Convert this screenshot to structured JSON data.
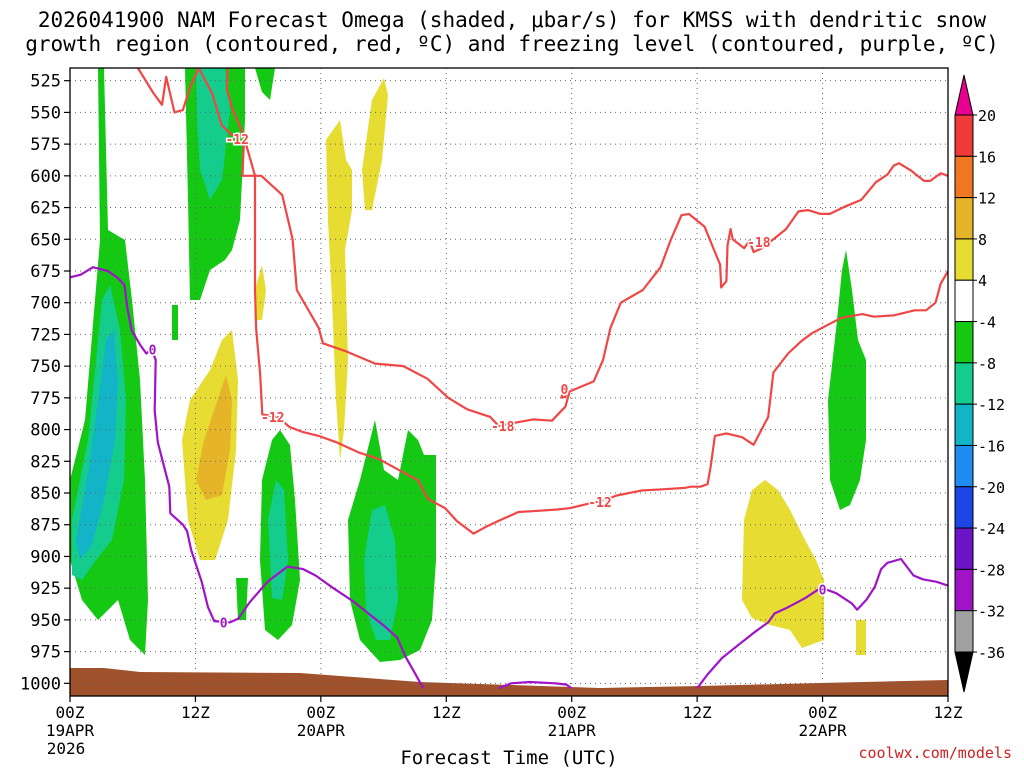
{
  "chart_data": {
    "type": "heatmap",
    "title_line1": "2026041900 NAM Forecast Omega (shaded, μbar/s) for KMSS with dendritic snow",
    "title_line2": "growth region (contoured, red, ºC) and freezing level (contoured, purple, ºC)",
    "xlabel": "Forecast Time (UTC)",
    "ylabel": "",
    "credit": "coolwx.com/models",
    "x_range_hours": [
      0,
      84
    ],
    "y_range_hpa": [
      515,
      1010
    ],
    "y_ticks": [
      "525",
      "550",
      "575",
      "600",
      "625",
      "650",
      "675",
      "700",
      "725",
      "750",
      "775",
      "800",
      "825",
      "850",
      "875",
      "900",
      "925",
      "950",
      "975",
      "1000"
    ],
    "x_ticks": [
      {
        "hour": 0,
        "time": "00Z",
        "date": "19APR",
        "year": "2026"
      },
      {
        "hour": 12,
        "time": "12Z",
        "date": "",
        "year": ""
      },
      {
        "hour": 24,
        "time": "00Z",
        "date": "20APR",
        "year": ""
      },
      {
        "hour": 36,
        "time": "12Z",
        "date": "",
        "year": ""
      },
      {
        "hour": 48,
        "time": "00Z",
        "date": "21APR",
        "year": ""
      },
      {
        "hour": 60,
        "time": "12Z",
        "date": "",
        "year": ""
      },
      {
        "hour": 72,
        "time": "00Z",
        "date": "22APR",
        "year": ""
      },
      {
        "hour": 84,
        "time": "12Z",
        "date": "",
        "year": ""
      }
    ],
    "grid": true,
    "colorbar": {
      "levels": [
        "20",
        "16",
        "12",
        "8",
        "4",
        "-4",
        "-8",
        "-12",
        "-16",
        "-20",
        "-24",
        "-28",
        "-32",
        "-36"
      ],
      "colors": [
        "#e80090",
        "#f03a3a",
        "#f07820",
        "#e6b428",
        "#e6dc32",
        "#ffffff",
        "#14c814",
        "#14cd8c",
        "#14b4c8",
        "#1e8cf0",
        "#1e46e6",
        "#6e14c8",
        "#a014c8",
        "#a0a0a0",
        "#000000"
      ]
    },
    "contour_labels": [
      {
        "text": "-12",
        "h": 16.0,
        "p": 571,
        "series": "dgz"
      },
      {
        "text": "-12",
        "h": 19.4,
        "p": 790,
        "series": "dgz"
      },
      {
        "text": "-18",
        "h": 41.4,
        "p": 797,
        "series": "dgz"
      },
      {
        "text": "-12",
        "h": 50.7,
        "p": 857,
        "series": "dgz"
      },
      {
        "text": "-18",
        "h": 65.9,
        "p": 652,
        "series": "dgz"
      },
      {
        "text": "0",
        "h": 47.3,
        "p": 768,
        "series": "dgz"
      },
      {
        "text": "0",
        "h": 7.9,
        "p": 737,
        "series": "frz"
      },
      {
        "text": "0",
        "h": 14.7,
        "p": 952,
        "series": "frz"
      },
      {
        "text": "0",
        "h": 72.0,
        "p": 926,
        "series": "frz"
      }
    ],
    "series": [
      {
        "kind": "dgz_upper",
        "color": "#f04646",
        "points": [
          [
            6.5,
            515
          ],
          [
            8.0,
            535
          ],
          [
            8.8,
            544
          ],
          [
            9.2,
            522
          ],
          [
            10.0,
            550
          ],
          [
            10.8,
            548
          ],
          [
            11.5,
            530
          ],
          [
            12.3,
            515
          ],
          [
            13.6,
            535
          ],
          [
            14.5,
            560
          ],
          [
            15.5,
            568
          ],
          [
            16.7,
            568
          ],
          [
            16.6,
            580
          ],
          [
            16.5,
            600
          ],
          [
            18.3,
            600
          ],
          [
            20.3,
            615
          ],
          [
            21.3,
            650
          ],
          [
            21.7,
            690
          ],
          [
            23.8,
            720
          ],
          [
            24.2,
            732
          ],
          [
            26.3,
            738
          ],
          [
            29.2,
            748
          ],
          [
            31.9,
            750
          ],
          [
            34.2,
            760
          ],
          [
            36.2,
            775
          ],
          [
            38.0,
            784
          ],
          [
            40.2,
            790
          ],
          [
            41.0,
            797
          ],
          [
            44.3,
            792
          ],
          [
            46.1,
            793
          ],
          [
            47.4,
            782
          ],
          [
            47.8,
            770
          ],
          [
            50.1,
            762
          ],
          [
            51.0,
            745
          ],
          [
            51.7,
            720
          ],
          [
            52.7,
            700
          ],
          [
            54.8,
            690
          ],
          [
            56.5,
            672
          ],
          [
            57.5,
            650
          ],
          [
            58.5,
            631
          ],
          [
            59.2,
            630
          ],
          [
            60.7,
            640
          ],
          [
            61.7,
            660
          ],
          [
            62.2,
            670
          ],
          [
            62.3,
            688
          ],
          [
            62.8,
            683
          ],
          [
            62.9,
            655
          ],
          [
            63.2,
            642
          ],
          [
            63.4,
            650
          ],
          [
            64.5,
            657
          ],
          [
            65.0,
            651
          ],
          [
            65.4,
            660
          ],
          [
            66.2,
            657
          ],
          [
            67.3,
            650
          ],
          [
            68.5,
            642
          ],
          [
            69.7,
            628
          ],
          [
            70.6,
            627
          ],
          [
            71.8,
            630
          ],
          [
            72.7,
            630
          ],
          [
            74.2,
            624
          ],
          [
            75.7,
            619
          ],
          [
            77.1,
            605
          ],
          [
            78.2,
            599
          ],
          [
            78.8,
            592
          ],
          [
            79.3,
            590
          ],
          [
            80.5,
            596
          ],
          [
            81.7,
            604
          ],
          [
            82.3,
            604
          ],
          [
            83.3,
            598
          ],
          [
            84.0,
            600
          ]
        ]
      },
      {
        "kind": "dgz_lower",
        "color": "#f04646",
        "points": [
          [
            15.1,
            515
          ],
          [
            15.0,
            532
          ],
          [
            15.5,
            546
          ],
          [
            16.6,
            568
          ],
          [
            17.7,
            600
          ],
          [
            17.7,
            690
          ],
          [
            17.8,
            720
          ],
          [
            18.2,
            757
          ],
          [
            18.4,
            788
          ],
          [
            19.9,
            790
          ],
          [
            21.0,
            798
          ],
          [
            22.3,
            802
          ],
          [
            23.8,
            805
          ],
          [
            25.5,
            810
          ],
          [
            27.6,
            818
          ],
          [
            29.5,
            823
          ],
          [
            31.5,
            832
          ],
          [
            33.3,
            840
          ],
          [
            34.0,
            851
          ],
          [
            34.3,
            855
          ],
          [
            35.9,
            862
          ],
          [
            37.0,
            872
          ],
          [
            38.6,
            882
          ],
          [
            39.7,
            877
          ],
          [
            41.0,
            872
          ],
          [
            42.9,
            865
          ],
          [
            44.8,
            864
          ],
          [
            46.6,
            863
          ],
          [
            47.8,
            862
          ],
          [
            49.3,
            859
          ],
          [
            51.0,
            856
          ],
          [
            52.3,
            852
          ],
          [
            54.7,
            848
          ],
          [
            56.9,
            847
          ],
          [
            58.8,
            846
          ],
          [
            59.4,
            845
          ],
          [
            60.3,
            845
          ],
          [
            61.0,
            843
          ],
          [
            61.3,
            829
          ],
          [
            61.7,
            805
          ],
          [
            62.8,
            803
          ],
          [
            64.3,
            806
          ],
          [
            65.4,
            812
          ],
          [
            66.8,
            790
          ],
          [
            67.3,
            755
          ],
          [
            68.7,
            740
          ],
          [
            70.0,
            730
          ],
          [
            71.0,
            724
          ],
          [
            72.6,
            717
          ],
          [
            73.8,
            712
          ],
          [
            75.8,
            709
          ],
          [
            76.9,
            711
          ],
          [
            78.8,
            710
          ],
          [
            80.8,
            706
          ],
          [
            81.9,
            706
          ],
          [
            82.8,
            700
          ],
          [
            83.3,
            685
          ],
          [
            84.0,
            675
          ]
        ]
      },
      {
        "kind": "dgz_loop",
        "color": "#f04646",
        "points": [
          [
            47.0,
            775
          ],
          [
            47.2,
            770
          ],
          [
            47.6,
            768
          ],
          [
            47.4,
            774
          ],
          [
            47.0,
            775
          ]
        ]
      },
      {
        "kind": "frz",
        "color": "#a014c8",
        "points": [
          [
            0,
            680
          ],
          [
            1.0,
            678
          ],
          [
            2.2,
            672
          ],
          [
            3.6,
            675
          ],
          [
            4.5,
            680
          ],
          [
            5.2,
            686
          ],
          [
            5.5,
            705
          ],
          [
            5.9,
            722
          ],
          [
            6.7,
            733
          ],
          [
            7.3,
            740
          ],
          [
            7.8,
            737
          ],
          [
            8.2,
            745
          ],
          [
            8.1,
            785
          ],
          [
            8.4,
            810
          ],
          [
            9.5,
            845
          ],
          [
            9.6,
            866
          ],
          [
            10.8,
            875
          ],
          [
            11.2,
            880
          ],
          [
            11.6,
            895
          ],
          [
            12.6,
            920
          ],
          [
            13.2,
            940
          ],
          [
            13.8,
            951
          ],
          [
            15.3,
            952
          ],
          [
            16.1,
            949
          ],
          [
            17.2,
            936
          ],
          [
            18.9,
            920
          ],
          [
            20.8,
            908
          ],
          [
            22.3,
            910
          ],
          [
            23.5,
            915
          ],
          [
            25.2,
            925
          ],
          [
            27.2,
            936
          ],
          [
            28.7,
            946
          ],
          [
            30.1,
            955
          ],
          [
            31.3,
            964
          ],
          [
            32.1,
            979
          ],
          [
            33.0,
            992
          ],
          [
            33.8,
            1004
          ]
        ]
      },
      {
        "kind": "frz2",
        "color": "#a014c8",
        "points": [
          [
            41.0,
            1004
          ],
          [
            42.2,
            1000
          ],
          [
            44.0,
            999
          ],
          [
            46.4,
            1000
          ],
          [
            47.5,
            1001
          ],
          [
            48.0,
            1004
          ]
        ]
      },
      {
        "kind": "frz3",
        "color": "#a014c8",
        "points": [
          [
            60.0,
            1004
          ],
          [
            61.0,
            993
          ],
          [
            62.4,
            980
          ],
          [
            63.9,
            970
          ],
          [
            65.6,
            959
          ],
          [
            66.8,
            952
          ],
          [
            67.4,
            945
          ],
          [
            68.7,
            940
          ],
          [
            70.3,
            933
          ],
          [
            71.6,
            926
          ],
          [
            72.0,
            925
          ],
          [
            73.3,
            929
          ],
          [
            74.8,
            937
          ],
          [
            75.3,
            942
          ],
          [
            76.2,
            934
          ],
          [
            77.0,
            924
          ],
          [
            77.6,
            910
          ],
          [
            78.2,
            905
          ],
          [
            79.5,
            902
          ],
          [
            80.7,
            915
          ],
          [
            81.6,
            918
          ],
          [
            82.9,
            920
          ],
          [
            84.0,
            923
          ]
        ]
      }
    ]
  }
}
